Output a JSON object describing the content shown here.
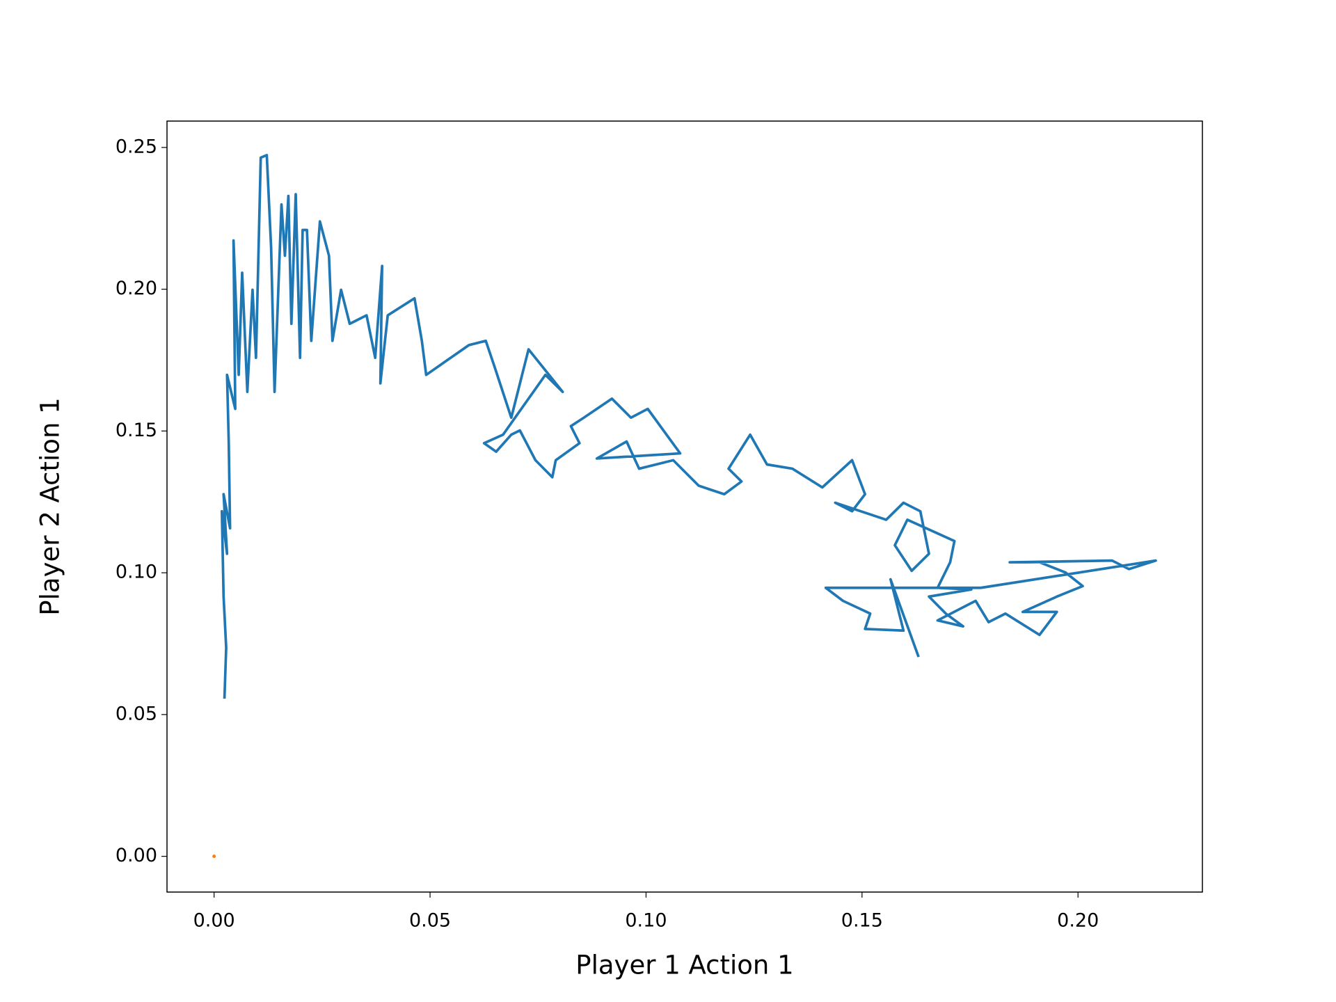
{
  "chart_data": {
    "type": "line",
    "x_label": "Player 1 Action 1",
    "y_label": "Player 2 Action 1",
    "xlim": [
      -0.0109,
      0.2288
    ],
    "ylim": [
      -0.0126,
      0.2593
    ],
    "xticks": [
      {
        "value": 0,
        "label": "0.00"
      },
      {
        "value": 0.05,
        "label": "0.05"
      },
      {
        "value": 0.1,
        "label": "0.10"
      },
      {
        "value": 0.15,
        "label": "0.15"
      },
      {
        "value": 0.2,
        "label": "0.20"
      }
    ],
    "yticks": [
      {
        "value": 0,
        "label": "0.00"
      },
      {
        "value": 0.05,
        "label": "0.05"
      },
      {
        "value": 0.1,
        "label": "0.10"
      },
      {
        "value": 0.15,
        "label": "0.15"
      },
      {
        "value": 0.2,
        "label": "0.20"
      },
      {
        "value": 0.25,
        "label": "0.25"
      }
    ],
    "series": [
      {
        "color": "#1f77b4",
        "x": [
          0.0024,
          0.0028,
          0.0022,
          0.0018,
          0.003,
          0.0022,
          0.0037,
          0.0034,
          0.003,
          0.0049,
          0.0045,
          0.0057,
          0.0065,
          0.0077,
          0.0089,
          0.0097,
          0.0108,
          0.0122,
          0.0132,
          0.014,
          0.0156,
          0.0164,
          0.0172,
          0.0179,
          0.0189,
          0.0199,
          0.0205,
          0.0215,
          0.0225,
          0.0245,
          0.0266,
          0.0274,
          0.0294,
          0.0314,
          0.0353,
          0.0373,
          0.0389,
          0.0385,
          0.0402,
          0.0464,
          0.0481,
          0.0491,
          0.059,
          0.0629,
          0.0649,
          0.0688,
          0.0728,
          0.0807,
          0.0767,
          0.0669,
          0.0625,
          0.0653,
          0.0688,
          0.0708,
          0.0744,
          0.0783,
          0.0791,
          0.0846,
          0.0826,
          0.0856,
          0.0921,
          0.0965,
          0.1004,
          0.1079,
          0.0886,
          0.0955,
          0.0984,
          0.1063,
          0.1122,
          0.1181,
          0.1221,
          0.1191,
          0.1241,
          0.128,
          0.1339,
          0.1408,
          0.1477,
          0.1507,
          0.1477,
          0.1438,
          0.1556,
          0.1596,
          0.1635,
          0.1655,
          0.1615,
          0.1576,
          0.1605,
          0.1714,
          0.1704,
          0.1675,
          0.1753,
          0.1655,
          0.1694,
          0.1734,
          0.1675,
          0.1763,
          0.1793,
          0.1832,
          0.1911,
          0.1951,
          0.1872,
          0.1951,
          0.2011,
          0.1971,
          0.1911,
          0.1842,
          0.2079,
          0.2118,
          0.218,
          0.1775,
          0.1416,
          0.1456,
          0.1519,
          0.1507,
          0.1596,
          0.1566,
          0.1631
        ],
        "values": [
          0.0556,
          0.0736,
          0.0916,
          0.1217,
          0.1067,
          0.1277,
          0.1157,
          0.1457,
          0.1698,
          0.1578,
          0.2172,
          0.1698,
          0.2058,
          0.1638,
          0.1998,
          0.1758,
          0.2464,
          0.2473,
          0.2148,
          0.1638,
          0.2299,
          0.2118,
          0.2329,
          0.1878,
          0.2335,
          0.1758,
          0.2209,
          0.2209,
          0.1818,
          0.2239,
          0.2118,
          0.1818,
          0.1998,
          0.1878,
          0.1908,
          0.1758,
          0.2082,
          0.1668,
          0.1908,
          0.1968,
          0.1818,
          0.1698,
          0.1803,
          0.1818,
          0.1728,
          0.1547,
          0.1788,
          0.1638,
          0.1698,
          0.1487,
          0.1457,
          0.1427,
          0.1487,
          0.1502,
          0.1397,
          0.1337,
          0.1397,
          0.1457,
          0.1517,
          0.1547,
          0.1614,
          0.1547,
          0.1578,
          0.1421,
          0.1403,
          0.1463,
          0.1367,
          0.1397,
          0.1307,
          0.1277,
          0.1322,
          0.1367,
          0.1487,
          0.1382,
          0.1367,
          0.1301,
          0.1397,
          0.1277,
          0.1217,
          0.1247,
          0.1187,
          0.1247,
          0.1217,
          0.1067,
          0.1007,
          0.1097,
          0.1187,
          0.1112,
          0.1037,
          0.0947,
          0.0941,
          0.0916,
          0.0856,
          0.0811,
          0.0832,
          0.0901,
          0.0826,
          0.0856,
          0.0781,
          0.0862,
          0.0862,
          0.0916,
          0.0953,
          0.1001,
          0.1037,
          0.1037,
          0.1043,
          0.1013,
          0.1043,
          0.0947,
          0.0947,
          0.0901,
          0.0856,
          0.0802,
          0.0796,
          0.0977,
          0.0703
        ]
      },
      {
        "color": "#ff7f0e",
        "x": [
          0
        ],
        "values": [
          0
        ]
      }
    ]
  }
}
